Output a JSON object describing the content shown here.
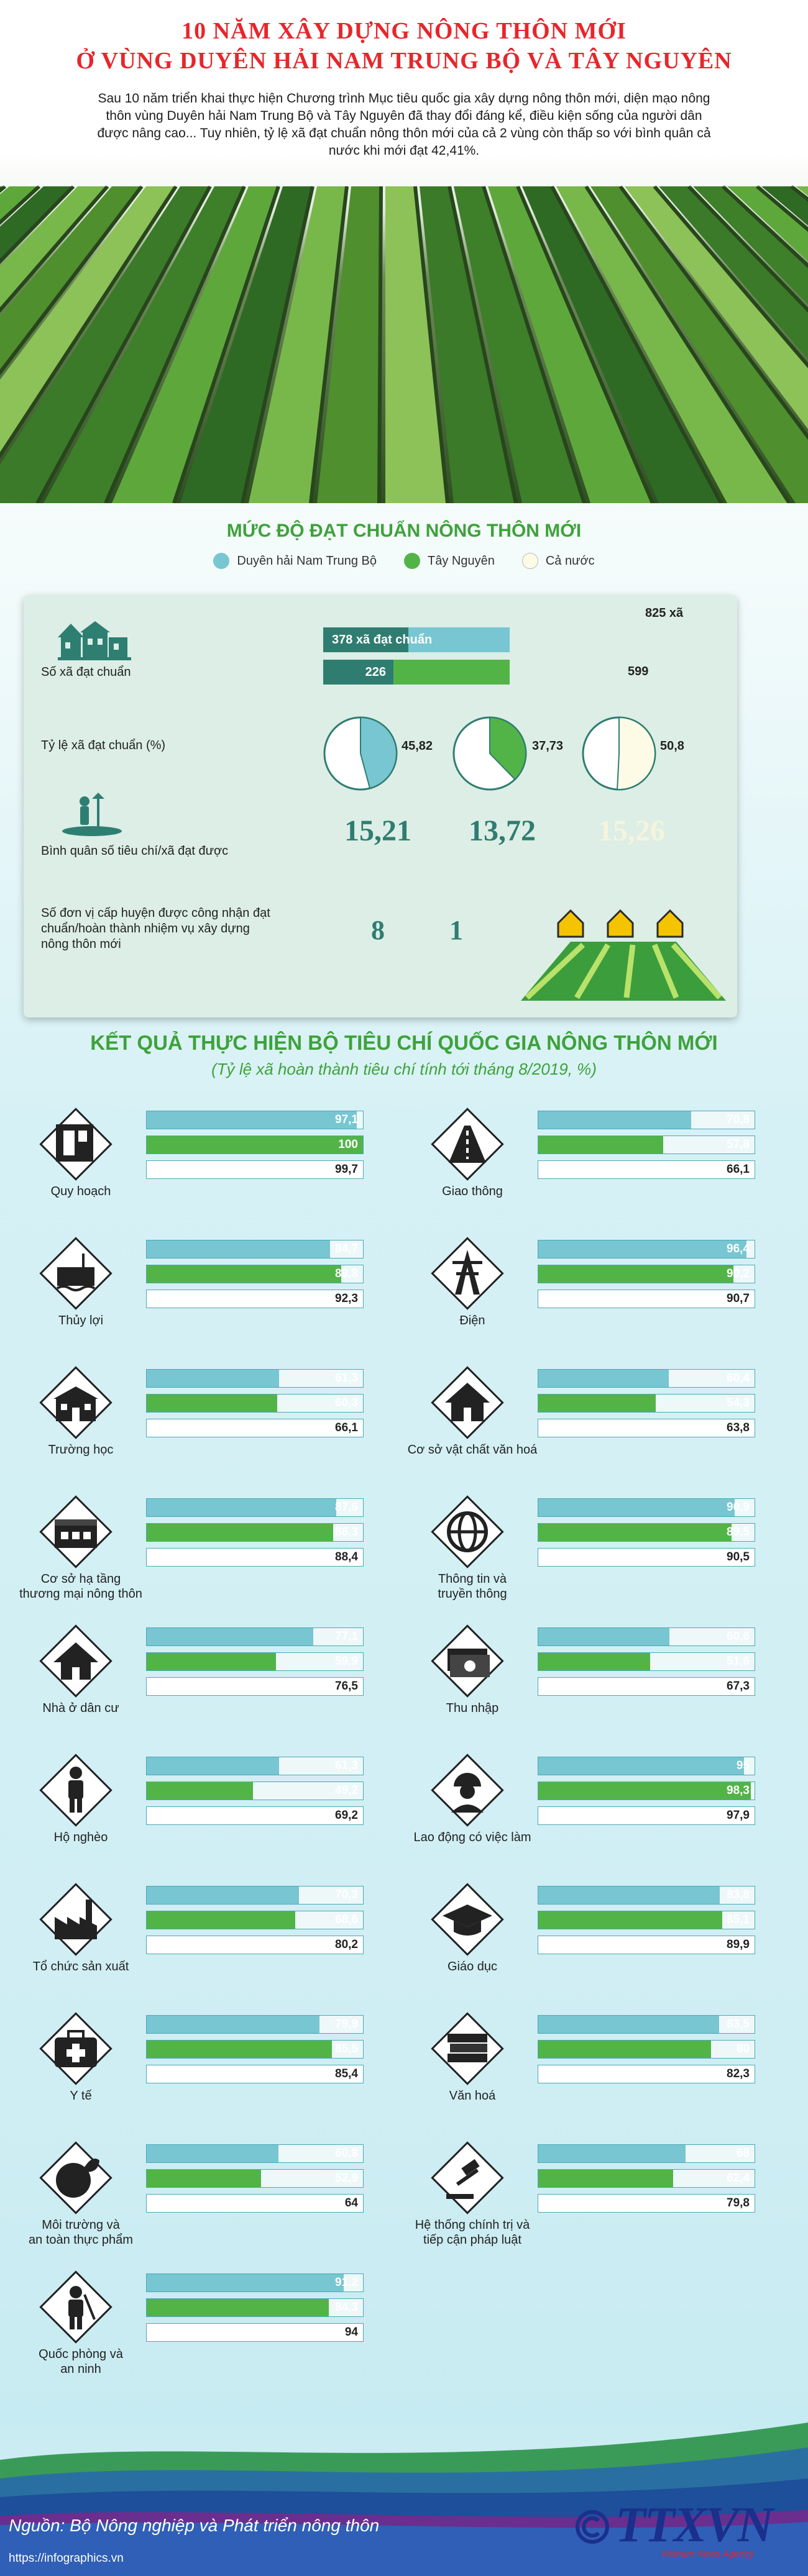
{
  "header": {
    "title_line1": "10 NĂM XÂY DỰNG NÔNG THÔN MỚI",
    "title_line2": "Ở VÙNG DUYÊN HẢI NAM TRUNG BỘ VÀ TÂY NGUYÊN",
    "intro": "Sau 10 năm triển khai thực hiện Chương trình Mục tiêu quốc gia xây dựng nông thôn mới, diện mạo nông thôn vùng Duyên hải Nam Trung Bộ và Tây Nguyên đã thay đổi đáng kể, điều kiện sống của người dân được nâng cao... Tuy nhiên, tỷ lệ xã đạt chuẩn nông thôn mới của cả 2 vùng còn thấp so với bình quân cả nước khi mới đạt 42,41%."
  },
  "colors": {
    "duyen_hai": "#77c6d1",
    "tay_nguyen": "#52b447",
    "ca_nuoc": "#fdfbe6",
    "title_red": "#e7262c",
    "accent_green": "#3ea23b",
    "dark_teal": "#2e7f72"
  },
  "level": {
    "title": "MỨC ĐỘ ĐẠT CHUẨN NÔNG THÔN MỚI",
    "legend": [
      "Duyên hải Nam Trung Bộ",
      "Tây Nguyên",
      "Cả nước"
    ],
    "so_xa_label": "Số xã đạt chuẩn",
    "ty_le_label": "Tỷ lệ xã đạt chuẩn (%)",
    "binh_quan_label": "Bình quân số tiêu chí/xã đạt được",
    "don_vi_label": "Số đơn vị cấp huyện được công nhận đạt chuẩn/hoàn thành nhiệm vụ xây dựng nông thôn mới"
  },
  "chart_data": [
    {
      "type": "bar",
      "title": "Số xã đạt chuẩn",
      "categories": [
        "Duyên hải Nam Trung Bộ",
        "Tây Nguyên"
      ],
      "series": [
        {
          "name": "Vùng",
          "values": [
            378,
            226
          ],
          "labels": [
            "378 xã đạt chuẩn",
            "226"
          ]
        },
        {
          "name": "Tổng số xã",
          "values": [
            825,
            599
          ],
          "labels": [
            "825 xã",
            "599"
          ]
        }
      ]
    },
    {
      "type": "pie",
      "title": "Tỷ lệ xã đạt chuẩn (%)",
      "categories": [
        "Duyên hải Nam Trung Bộ",
        "Tây Nguyên",
        "Cả nước"
      ],
      "values": [
        45.82,
        37.73,
        50.8
      ],
      "labels": [
        "45,82",
        "37,73",
        "50,8"
      ]
    },
    {
      "type": "table",
      "title": "Bình quân số tiêu chí/xã đạt được",
      "categories": [
        "Duyên hải Nam Trung Bộ",
        "Tây Nguyên",
        "Cả nước"
      ],
      "values": [
        15.21,
        13.72,
        15.26
      ],
      "labels": [
        "15,21",
        "13,72",
        "15,26"
      ]
    },
    {
      "type": "table",
      "title": "Số đơn vị cấp huyện đạt chuẩn",
      "categories": [
        "Duyên hải Nam Trung Bộ",
        "Tây Nguyên"
      ],
      "values": [
        8,
        1
      ],
      "labels": [
        "8",
        "1"
      ]
    },
    {
      "type": "bar",
      "title": "KẾT QUẢ THỰC HIỆN BỘ TIÊU CHÍ QUỐC GIA NÔNG THÔN MỚI",
      "subtitle": "(Tỷ lệ xã hoàn thành tiêu chí tính tới tháng 8/2019, %)",
      "xlim": [
        0,
        100
      ],
      "series_names": [
        "Duyên hải Nam Trung Bộ",
        "Tây Nguyên",
        "Cả nước"
      ],
      "categories": [
        "Quy hoạch",
        "Giao thông",
        "Thủy lợi",
        "Điện",
        "Trường học",
        "Cơ sở vật chất văn hoá",
        "Cơ sở hạ tầng thương mại nông thôn",
        "Thông tin và truyền thông",
        "Nhà ở dân cư",
        "Thu nhập",
        "Hộ nghèo",
        "Lao động có việc làm",
        "Tổ chức sản xuất",
        "Giáo dục",
        "Y tế",
        "Văn hoá",
        "Môi trường và an toàn thực phẩm",
        "Hệ thống chính trị và tiếp cận pháp luật",
        "Quốc phòng và an ninh"
      ],
      "label_lines": [
        [
          "Quy hoạch"
        ],
        [
          "Giao thông"
        ],
        [
          "Thủy lợi"
        ],
        [
          "Điện"
        ],
        [
          "Trường học"
        ],
        [
          "Cơ sở vật chất văn hoá"
        ],
        [
          "Cơ sở hạ tầng",
          "thương mại nông thôn"
        ],
        [
          "Thông tin và",
          "truyền thông"
        ],
        [
          "Nhà ở dân cư"
        ],
        [
          "Thu nhập"
        ],
        [
          "Hộ nghèo"
        ],
        [
          "Lao động có việc làm"
        ],
        [
          "Tổ chức sản xuất"
        ],
        [
          "Giáo dục"
        ],
        [
          "Y tế"
        ],
        [
          "Văn hoá"
        ],
        [
          "Môi trường và",
          "an toàn thực phẩm"
        ],
        [
          "Hệ thống chính trị và",
          "tiếp cận pháp luật"
        ],
        [
          "Quốc phòng và",
          "an ninh"
        ]
      ],
      "icons": [
        "map-icon",
        "road-icon",
        "dam-icon",
        "power-tower-icon",
        "school-icon",
        "cultural-house-icon",
        "market-icon",
        "globe-icon",
        "house-icon",
        "money-icon",
        "person-icon",
        "worker-icon",
        "factory-icon",
        "graduation-cap-icon",
        "medical-kit-icon",
        "books-icon",
        "environment-icon",
        "justice-icon",
        "soldier-icon"
      ],
      "series": [
        {
          "name": "Duyên hải Nam Trung Bộ",
          "values": [
            97.1,
            70.8,
            84.7,
            96.4,
            61.3,
            60.4,
            87.6,
            90.9,
            77.1,
            60.6,
            61.3,
            95,
            70.3,
            83.8,
            79.9,
            83.5,
            60.8,
            68,
            91.2
          ],
          "labels": [
            "97,1",
            "70,8",
            "84,7",
            "96,4",
            "61,3",
            "60,4",
            "87,6",
            "90,9",
            "77,1",
            "60,6",
            "61,3",
            "95",
            "70,3",
            "83,8",
            "79,9",
            "83,5",
            "60,8",
            "68",
            "91,2"
          ]
        },
        {
          "name": "Tây Nguyên",
          "values": [
            100,
            57.8,
            89.8,
            90.2,
            60.3,
            54.3,
            86.3,
            89.5,
            59.9,
            51.6,
            49.2,
            98.3,
            68.6,
            85.1,
            85.5,
            80,
            52.9,
            62.4,
            84.3
          ],
          "labels": [
            "100",
            "57,8",
            "89,8",
            "90,2",
            "60,3",
            "54,3",
            "86,3",
            "89,5",
            "59,9",
            "51,6",
            "49,2",
            "98,3",
            "68,6",
            "85,1",
            "85,5",
            "80",
            "52,9",
            "62,4",
            "84,3"
          ]
        },
        {
          "name": "Cả nước",
          "values": [
            99.7,
            66.1,
            92.3,
            90.7,
            66.1,
            63.8,
            88.4,
            90.5,
            76.5,
            67.3,
            69.2,
            97.9,
            80.2,
            89.9,
            85.4,
            82.3,
            64,
            79.8,
            94
          ],
          "labels": [
            "99,7",
            "66,1",
            "92,3",
            "90,7",
            "66,1",
            "63,8",
            "88,4",
            "90,5",
            "76,5",
            "67,3",
            "69,2",
            "97,9",
            "80,2",
            "89,9",
            "85,4",
            "82,3",
            "64",
            "79,8",
            "94"
          ]
        }
      ]
    }
  ],
  "criteria_section": {
    "title": "KẾT QUẢ THỰC HIỆN BỘ TIÊU CHÍ QUỐC GIA NÔNG THÔN MỚI",
    "subtitle": "(Tỷ lệ xã hoàn thành tiêu chí tính tới tháng 8/2019, %)"
  },
  "footer": {
    "source": "Nguồn: Bộ Nông nghiệp và Phát triển nông thôn",
    "url": "https://infographics.vn",
    "logo": "TTXVN",
    "logo_sub": "Vietnam News Agency"
  }
}
